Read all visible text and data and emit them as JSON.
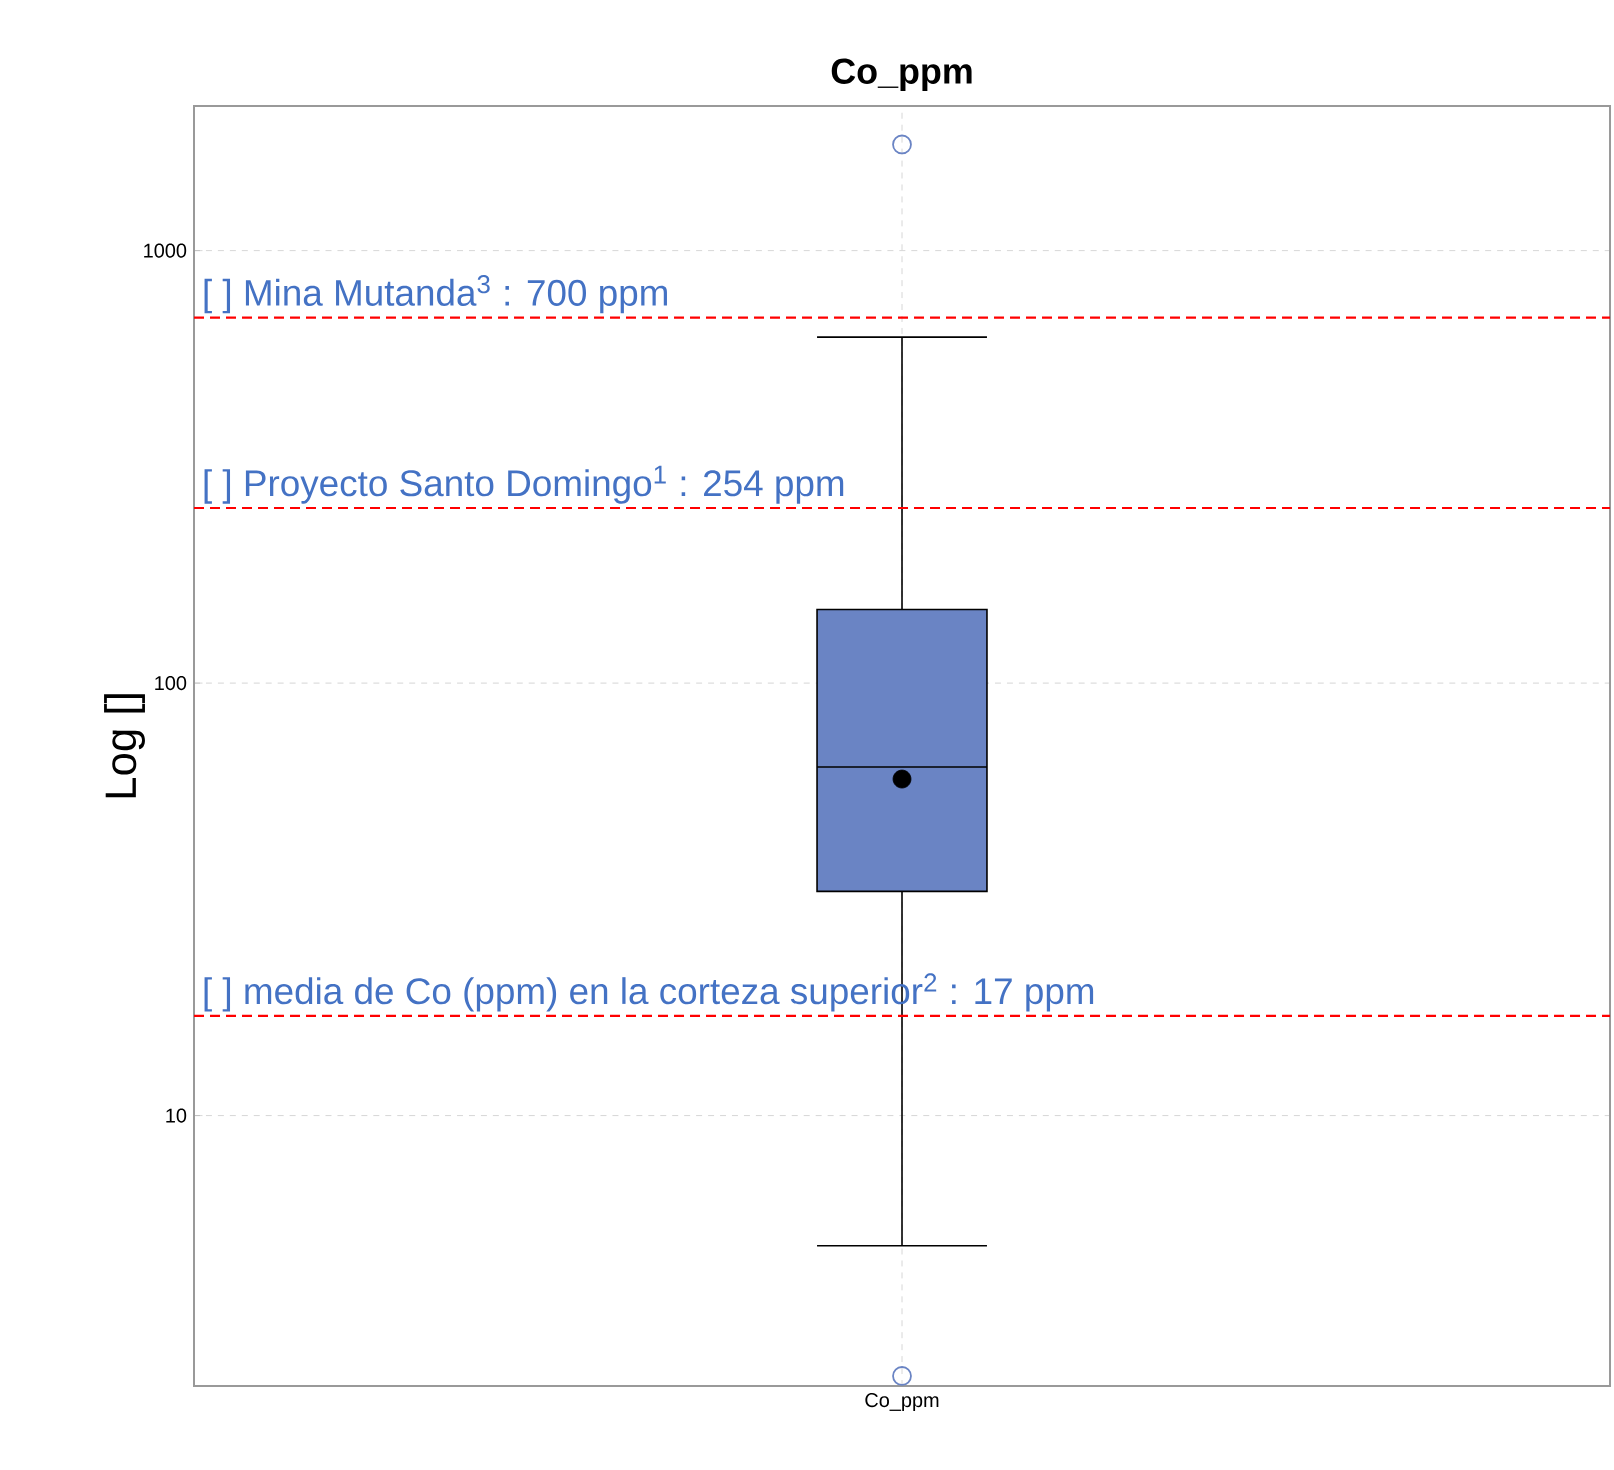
{
  "chart_data": {
    "type": "box",
    "title": "Co_ppm",
    "ylabel": "Log []",
    "categories": [
      "Co_ppm"
    ],
    "series": [
      {
        "color": "#6a84c4",
        "boxes": [
          {
            "low": 5,
            "q1": 33,
            "median": 64,
            "q3": 148,
            "high": 631,
            "mean": 60,
            "outliers": [
              1760,
              2.5
            ]
          }
        ]
      }
    ],
    "log": "y",
    "ylim": [
      2.37,
      2160
    ],
    "yticks": [
      10,
      100,
      1000
    ],
    "grid": true,
    "ref_lines": [
      {
        "axis": "y",
        "value": 700,
        "label": "[ ] Mina Mutanda$^{3}$ : 700 ppm",
        "color": "#ff0000",
        "line_style": "dashed"
      },
      {
        "axis": "y",
        "value": 254,
        "label": "[ ] Proyecto Santo Domingo$^{1}$ : 254 ppm",
        "color": "#ff0000",
        "line_style": "dashed"
      },
      {
        "axis": "y",
        "value": 17,
        "label": "[ ] media de Co (ppm) en la corteza superior$^{2}$ : 17 ppm",
        "color": "#ff0000",
        "line_style": "dashed"
      }
    ]
  }
}
